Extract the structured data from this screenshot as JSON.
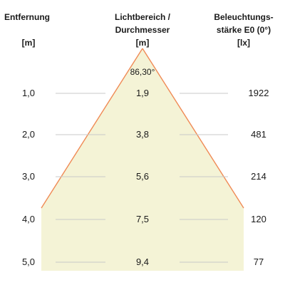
{
  "headers": {
    "distance": {
      "title": "Entfernung",
      "unit": "[m]"
    },
    "diameter": {
      "title_line1": "Lichtbereich /",
      "title_line2": "Durchmesser",
      "unit": "[m]"
    },
    "illuminance": {
      "title_line1": "Beleuchtungs-",
      "title_line2": "stärke E0 (0°)",
      "unit": "[lx]"
    }
  },
  "beam_angle": "86,30°",
  "rows": [
    {
      "distance": "1,0",
      "diameter": "1,9",
      "illuminance": "1922"
    },
    {
      "distance": "2,0",
      "diameter": "3,8",
      "illuminance": "481"
    },
    {
      "distance": "3,0",
      "diameter": "5,6",
      "illuminance": "214"
    },
    {
      "distance": "4,0",
      "diameter": "7,5",
      "illuminance": "120"
    },
    {
      "distance": "5,0",
      "diameter": "9,4",
      "illuminance": "77"
    }
  ],
  "colors": {
    "beam_fill": "#f4f3d6",
    "beam_edge": "#f08a55",
    "guide_line": "#c8c8c8"
  }
}
